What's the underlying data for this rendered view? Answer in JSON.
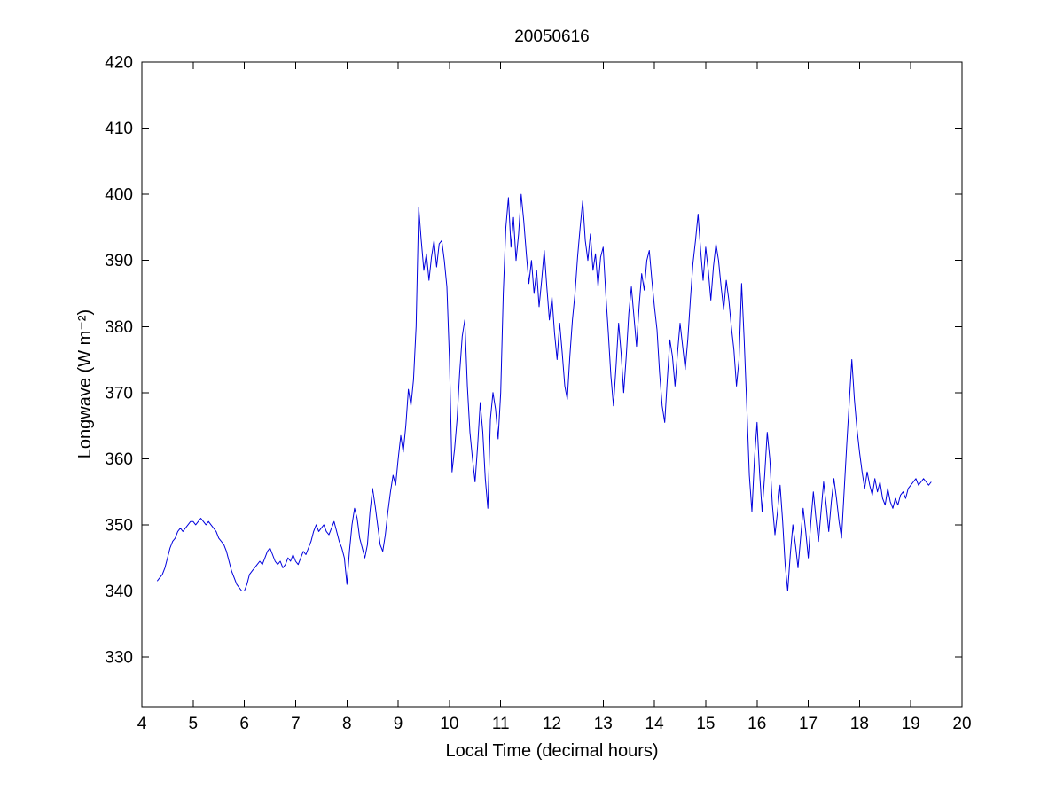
{
  "figure": {
    "background": "#ffffff",
    "window_type": "matlab-style-figure"
  },
  "chart_data": {
    "type": "line",
    "title": "20050616",
    "xlabel": "Local Time (decimal hours)",
    "ylabel": "Longwave (W m⁻²)",
    "xlim": [
      4,
      20
    ],
    "ylim": [
      322.5,
      420
    ],
    "xticks": [
      4,
      5,
      6,
      7,
      8,
      9,
      10,
      11,
      12,
      13,
      14,
      15,
      16,
      17,
      18,
      19,
      20
    ],
    "yticks": [
      330,
      340,
      350,
      360,
      370,
      380,
      390,
      400,
      410,
      420
    ],
    "grid": false,
    "legend": false,
    "line_color": "#0000dd",
    "axis_color": "#000000",
    "series": [
      {
        "name": "longwave",
        "x_start": 4.3,
        "x_step": 0.05,
        "y": [
          341.5,
          342,
          342.5,
          343.5,
          345,
          346.5,
          347.5,
          348,
          349,
          349.5,
          349,
          349.5,
          350,
          350.5,
          350.5,
          350,
          350.5,
          351,
          350.5,
          350,
          350.5,
          350,
          349.5,
          349,
          348,
          347.5,
          347,
          346,
          344.5,
          343,
          342,
          341,
          340.5,
          340,
          340,
          341,
          342.5,
          343,
          343.5,
          344,
          344.5,
          344,
          345,
          346,
          346.5,
          345.5,
          344.5,
          344,
          344.5,
          343.5,
          344,
          345,
          344.5,
          345.5,
          344.5,
          344,
          345,
          346,
          345.5,
          346.5,
          347.5,
          349,
          350,
          349,
          349.5,
          350,
          349,
          348.5,
          349.5,
          350.5,
          349,
          347.5,
          346.5,
          345,
          341,
          346,
          350,
          352.5,
          351,
          348,
          346.5,
          345,
          347,
          352,
          355.5,
          353,
          350,
          347,
          346,
          348.5,
          352,
          355,
          357.5,
          356,
          360,
          363.5,
          361,
          365,
          370.5,
          368,
          372,
          380,
          398,
          393,
          388.5,
          391,
          387,
          390.5,
          393,
          389,
          392.5,
          393,
          390,
          386,
          375,
          358,
          361.5,
          366,
          373,
          378.5,
          381,
          371,
          364,
          360,
          356.5,
          362,
          368.5,
          364,
          357,
          352.5,
          366,
          370,
          367.5,
          363,
          370,
          385,
          395,
          399.5,
          392,
          396.5,
          390,
          394,
          400,
          396,
          391,
          386.5,
          390,
          385,
          388.5,
          383,
          387,
          391.5,
          386,
          381,
          384.5,
          379,
          375,
          380.5,
          376,
          371,
          369,
          375.5,
          381,
          385,
          390.5,
          395,
          399,
          393,
          390,
          394,
          388.5,
          391,
          386,
          390.5,
          392,
          385,
          379,
          372.5,
          368,
          374,
          380.5,
          376,
          370,
          375.5,
          382,
          386,
          381.5,
          377,
          383,
          388,
          385.5,
          390,
          391.5,
          387,
          383,
          379.5,
          373,
          368,
          365.5,
          372,
          378,
          375.5,
          371,
          376,
          380.5,
          377,
          373.5,
          378,
          384,
          389.5,
          393,
          397,
          391.5,
          387,
          392,
          388.5,
          384,
          389,
          392.5,
          390,
          386,
          382.5,
          387,
          384,
          380,
          376.5,
          371,
          375,
          386.5,
          378,
          368,
          357.5,
          352,
          360,
          365.5,
          358,
          352,
          357.5,
          364,
          360,
          353,
          348.5,
          352,
          356,
          350.5,
          344,
          340,
          345.5,
          350,
          347,
          343.5,
          348,
          352.5,
          349,
          345,
          350.5,
          355,
          351,
          347.5,
          352,
          356.5,
          353,
          349,
          353.5,
          357,
          354,
          350.5,
          348,
          355,
          362,
          368.5,
          375,
          369,
          364.5,
          361,
          358,
          355.5,
          358,
          356,
          354.5,
          357,
          355,
          356.5,
          354,
          353,
          355.5,
          353.5,
          352.5,
          354,
          353,
          354.5,
          355,
          354,
          355.5,
          356,
          356.5,
          357,
          356,
          356.5,
          357,
          356.5,
          356,
          356.5
        ]
      }
    ]
  }
}
